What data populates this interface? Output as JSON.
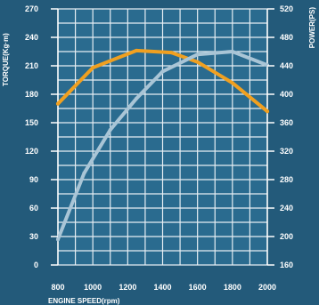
{
  "chart_data": {
    "type": "line",
    "x": [
      800,
      900,
      1000,
      1100,
      1200,
      1300,
      1400,
      1500,
      1600,
      1700,
      1800,
      1900,
      2000
    ],
    "xlabel": "ENGINE SPEED(rpm)",
    "x_ticks": [
      "800",
      "1000",
      "1200",
      "1400",
      "1600",
      "1800",
      "2000"
    ],
    "ylabel_left": "TORQUE(Kg·m)",
    "ylabel_right": "POWER(PS)",
    "y_left_ticks": [
      "0",
      "30",
      "60",
      "90",
      "120",
      "150",
      "180",
      "210",
      "240",
      "270"
    ],
    "y_right_ticks": [
      "160",
      "200",
      "240",
      "280",
      "320",
      "360",
      "400",
      "440",
      "480",
      "520"
    ],
    "xlim": [
      800,
      2000
    ],
    "ylim_left": [
      0,
      270
    ],
    "ylim_right": [
      160,
      520
    ],
    "grid": true,
    "series": [
      {
        "axis": "left",
        "color": "#f0a020",
        "x": [
          800,
          1000,
          1250,
          1450,
          1600,
          1800,
          2000
        ],
        "values": [
          170,
          208,
          226,
          224,
          214,
          192,
          162
        ]
      },
      {
        "axis": "right",
        "color": "#a9c5d6",
        "x": [
          800,
          950,
          1100,
          1250,
          1400,
          1600,
          1800,
          2000
        ],
        "values": [
          196,
          289,
          350,
          394,
          432,
          456,
          460,
          441
        ]
      }
    ]
  }
}
